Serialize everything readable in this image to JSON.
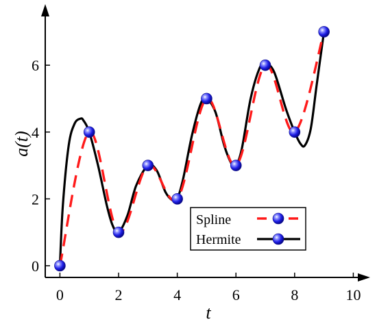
{
  "chart_data": {
    "type": "line",
    "title": "",
    "xlabel": "t",
    "ylabel": "a(t)",
    "xlim": [
      -0.5,
      10.2
    ],
    "ylim": [
      -0.35,
      7.5
    ],
    "xticks": [
      "0",
      "2",
      "4",
      "6",
      "8",
      "10"
    ],
    "yticks": [
      "0",
      "2",
      "4",
      "6"
    ],
    "grid": false,
    "legend_position": "bottom-right",
    "points": {
      "x": [
        0,
        1,
        2,
        3,
        4,
        5,
        6,
        7,
        8,
        9
      ],
      "y": [
        0,
        4,
        1,
        3,
        2,
        5,
        3,
        6,
        4,
        7
      ]
    },
    "series": [
      {
        "name": "Spline",
        "style": "dashed",
        "color": "#ff1a1a",
        "x": [
          0,
          1,
          2,
          3,
          4,
          5,
          6,
          7,
          8,
          9
        ],
        "y": [
          0,
          4,
          1,
          3,
          2,
          5,
          3,
          6,
          4,
          7
        ]
      },
      {
        "name": "Hermite",
        "style": "solid",
        "color": "#000000",
        "x": [
          0,
          0.1,
          0.3,
          0.5,
          0.7,
          0.8,
          1,
          1.3,
          1.6,
          1.8,
          2,
          2.3,
          2.6,
          3,
          3.3,
          3.6,
          3.85,
          4,
          4.2,
          4.5,
          4.8,
          5,
          5.3,
          5.6,
          5.85,
          6,
          6.2,
          6.5,
          6.8,
          7,
          7.3,
          7.7,
          8,
          8.2,
          8.35,
          8.55,
          8.75,
          9
        ],
        "y": [
          0,
          1.8,
          3.6,
          4.25,
          4.4,
          4.35,
          4.0,
          3.0,
          1.8,
          1.2,
          1.0,
          1.5,
          2.4,
          3.0,
          2.85,
          2.2,
          1.95,
          2.0,
          2.6,
          3.9,
          4.85,
          5.0,
          4.6,
          3.6,
          3.05,
          3.0,
          3.5,
          5.0,
          5.9,
          6.05,
          5.8,
          4.7,
          4.0,
          3.65,
          3.6,
          4.1,
          5.4,
          7.0
        ]
      }
    ]
  }
}
